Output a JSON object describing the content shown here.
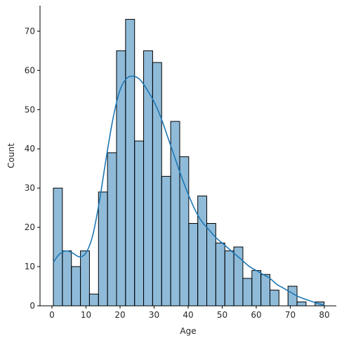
{
  "chart_data": {
    "type": "bar",
    "subtype": "histogram",
    "title": "",
    "xlabel": "Age",
    "ylabel": "Count",
    "xlim": [
      -3.5,
      83.5
    ],
    "ylim": [
      0,
      76.5
    ],
    "xticks": [
      0,
      10,
      20,
      30,
      40,
      50,
      60,
      70,
      80
    ],
    "yticks": [
      0,
      10,
      20,
      30,
      40,
      50,
      60,
      70
    ],
    "bin_start": 0.42,
    "bin_width": 2.65,
    "counts": [
      30,
      14,
      10,
      14,
      3,
      29,
      39,
      65,
      73,
      42,
      65,
      62,
      33,
      47,
      38,
      21,
      28,
      21,
      16,
      14,
      15,
      7,
      9,
      8,
      4,
      0,
      5,
      1,
      0,
      1
    ],
    "kde": {
      "x": [
        0.4,
        2,
        4,
        6,
        8,
        10,
        12,
        14,
        16,
        18,
        20,
        22,
        24,
        26,
        28,
        30,
        32,
        34,
        36,
        38,
        40,
        42,
        44,
        46,
        48,
        50,
        52,
        54,
        56,
        58,
        60,
        62,
        64,
        66,
        68,
        70,
        72,
        74,
        76,
        78,
        80
      ],
      "y": [
        11,
        13,
        14,
        13.5,
        12.5,
        13.5,
        18,
        27,
        38,
        48,
        55,
        58,
        58.5,
        57.5,
        55,
        52,
        48,
        43,
        38,
        33,
        28.5,
        24.5,
        21.5,
        19.5,
        17.5,
        16,
        14.5,
        13,
        11.5,
        10,
        9,
        8,
        7,
        5.5,
        4.5,
        3.5,
        2.5,
        1.8,
        1.2,
        0.6,
        0.2
      ]
    },
    "grid": false,
    "legend": "none",
    "colors": {
      "bar": "#1f77b4",
      "edge": "#000000",
      "kde": "#1f77b4"
    }
  }
}
